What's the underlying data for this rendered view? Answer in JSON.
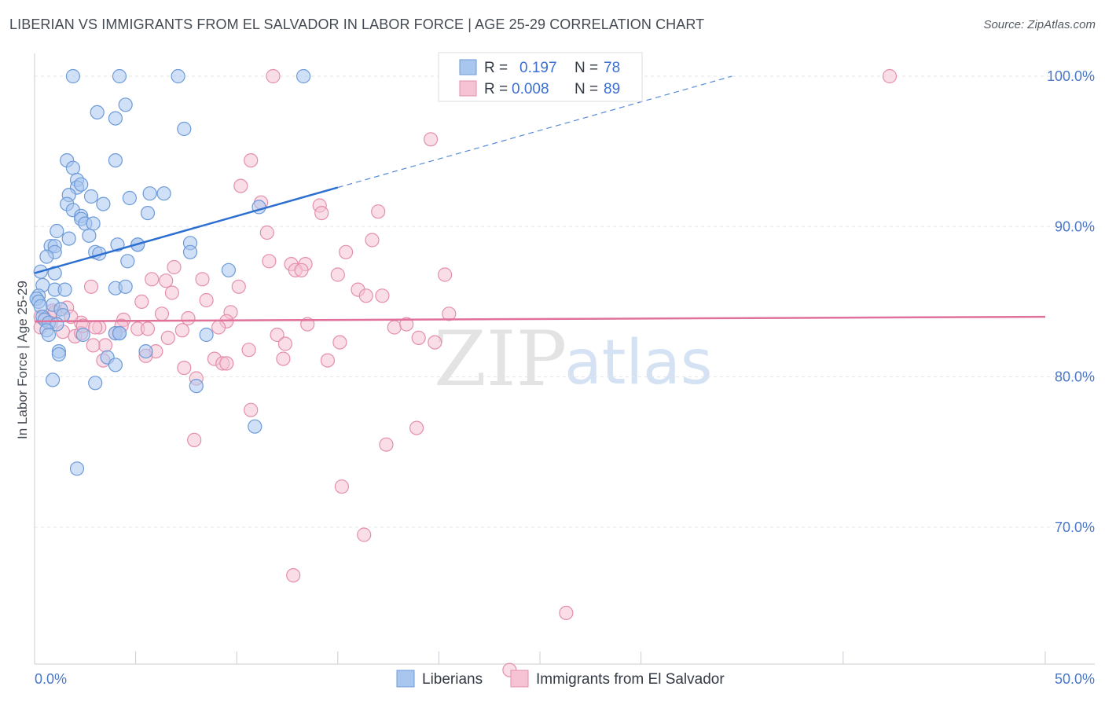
{
  "title": "LIBERIAN VS IMMIGRANTS FROM EL SALVADOR IN LABOR FORCE | AGE 25-29 CORRELATION CHART",
  "source": "Source: ZipAtlas.com",
  "watermark": {
    "zip": "ZIP",
    "atlas": "atlas"
  },
  "colors": {
    "liberians_fill": "#a9c6ee",
    "liberians_stroke": "#6d9ad8",
    "liberians_line": "#2d6fd1",
    "elsalvador_fill": "#f5c3d3",
    "elsalvador_stroke": "#e48fab",
    "elsalvador_line": "#e0719a",
    "tick_label": "#4a77c9",
    "grid": "#e3e6ea"
  },
  "legend": {
    "r_label": "R =",
    "n_label": "N =",
    "items": [
      {
        "r": "0.197",
        "n": "78"
      },
      {
        "r": "0.008",
        "n": "89"
      }
    ]
  },
  "bottom_legend": [
    "Liberians",
    "Immigrants from El Salvador"
  ],
  "chart_data": {
    "type": "scatter",
    "title": "LIBERIAN VS IMMIGRANTS FROM EL SALVADOR IN LABOR FORCE | AGE 25-29 CORRELATION CHART",
    "xlabel": "",
    "ylabel": "In Labor Force | Age 25-29",
    "xlim": [
      0,
      50
    ],
    "ylim": [
      60.5,
      101
    ],
    "x_tick_labels": [
      "0.0%",
      "50.0%"
    ],
    "y_ticks": [
      70,
      80,
      90,
      100
    ],
    "y_tick_labels": [
      "70.0%",
      "80.0%",
      "90.0%",
      "100.0%"
    ],
    "series": [
      {
        "name": "Liberians",
        "r": 0.197,
        "n": 78,
        "trend": {
          "x0": 0,
          "y0": 86.9,
          "x1": 15,
          "y1": 92.6,
          "dashed_to_x": 34.5,
          "dashed_to_y": 100.0
        },
        "points": [
          [
            1.9,
            100
          ],
          [
            4.2,
            100
          ],
          [
            7.1,
            100
          ],
          [
            13.3,
            100
          ],
          [
            3.1,
            97.6
          ],
          [
            4.0,
            97.2
          ],
          [
            4.5,
            98.1
          ],
          [
            7.4,
            96.5
          ],
          [
            1.6,
            94.4
          ],
          [
            1.9,
            93.9
          ],
          [
            4.0,
            94.4
          ],
          [
            2.1,
            93.1
          ],
          [
            2.1,
            92.6
          ],
          [
            2.3,
            92.8
          ],
          [
            1.7,
            92.1
          ],
          [
            2.8,
            92.0
          ],
          [
            5.7,
            92.2
          ],
          [
            4.7,
            91.9
          ],
          [
            6.4,
            92.2
          ],
          [
            1.6,
            91.5
          ],
          [
            1.9,
            91.1
          ],
          [
            3.4,
            91.5
          ],
          [
            11.1,
            91.3
          ],
          [
            2.3,
            90.7
          ],
          [
            2.3,
            90.5
          ],
          [
            2.5,
            90.2
          ],
          [
            2.9,
            90.2
          ],
          [
            5.6,
            90.9
          ],
          [
            1.1,
            89.7
          ],
          [
            1.7,
            89.2
          ],
          [
            2.7,
            89.4
          ],
          [
            0.8,
            88.7
          ],
          [
            1.0,
            88.7
          ],
          [
            1.0,
            88.3
          ],
          [
            0.6,
            88.0
          ],
          [
            3.0,
            88.3
          ],
          [
            3.2,
            88.2
          ],
          [
            4.1,
            88.8
          ],
          [
            5.1,
            88.8
          ],
          [
            5.1,
            88.8
          ],
          [
            7.7,
            88.9
          ],
          [
            7.7,
            88.3
          ],
          [
            4.6,
            87.7
          ],
          [
            0.3,
            87.0
          ],
          [
            1.0,
            86.9
          ],
          [
            9.6,
            87.1
          ],
          [
            0.4,
            86.1
          ],
          [
            0.2,
            85.4
          ],
          [
            0.1,
            85.2
          ],
          [
            1.0,
            85.8
          ],
          [
            1.5,
            85.8
          ],
          [
            4.0,
            85.9
          ],
          [
            4.5,
            86.0
          ],
          [
            0.2,
            85.0
          ],
          [
            0.3,
            84.7
          ],
          [
            0.9,
            84.8
          ],
          [
            1.3,
            84.5
          ],
          [
            0.4,
            84.0
          ],
          [
            1.4,
            84.1
          ],
          [
            0.5,
            83.8
          ],
          [
            0.7,
            83.6
          ],
          [
            1.1,
            83.5
          ],
          [
            0.6,
            83.1
          ],
          [
            0.7,
            82.8
          ],
          [
            2.4,
            82.8
          ],
          [
            4.0,
            82.9
          ],
          [
            4.2,
            82.9
          ],
          [
            4.2,
            82.9
          ],
          [
            8.5,
            82.8
          ],
          [
            1.2,
            81.7
          ],
          [
            1.2,
            81.5
          ],
          [
            5.5,
            81.7
          ],
          [
            3.6,
            81.3
          ],
          [
            4.0,
            80.8
          ],
          [
            0.9,
            79.8
          ],
          [
            3.0,
            79.6
          ],
          [
            8.0,
            79.4
          ],
          [
            10.9,
            76.7
          ],
          [
            2.1,
            73.9
          ]
        ]
      },
      {
        "name": "Immigrants from El Salvador",
        "r": 0.008,
        "n": 89,
        "trend": {
          "x0": 0,
          "y0": 83.7,
          "x1": 50,
          "y1": 84.0
        },
        "points": [
          [
            11.8,
            100
          ],
          [
            42.3,
            100
          ],
          [
            19.6,
            95.8
          ],
          [
            10.7,
            94.4
          ],
          [
            10.2,
            92.7
          ],
          [
            14.1,
            91.4
          ],
          [
            17.0,
            91.0
          ],
          [
            11.2,
            91.6
          ],
          [
            14.2,
            90.9
          ],
          [
            11.5,
            89.6
          ],
          [
            16.7,
            89.1
          ],
          [
            15.4,
            88.3
          ],
          [
            11.6,
            87.7
          ],
          [
            12.7,
            87.5
          ],
          [
            13.4,
            87.5
          ],
          [
            12.9,
            87.1
          ],
          [
            13.2,
            87.1
          ],
          [
            6.9,
            87.3
          ],
          [
            15.0,
            86.8
          ],
          [
            20.3,
            86.8
          ],
          [
            5.8,
            86.5
          ],
          [
            6.5,
            86.4
          ],
          [
            8.3,
            86.5
          ],
          [
            10.1,
            86.0
          ],
          [
            2.8,
            86.0
          ],
          [
            16.0,
            85.8
          ],
          [
            6.8,
            85.6
          ],
          [
            17.2,
            85.4
          ],
          [
            16.4,
            85.4
          ],
          [
            5.3,
            85.0
          ],
          [
            8.5,
            85.1
          ],
          [
            1.6,
            84.6
          ],
          [
            0.9,
            84.4
          ],
          [
            6.3,
            84.2
          ],
          [
            9.7,
            84.3
          ],
          [
            20.5,
            84.2
          ],
          [
            0.5,
            83.9
          ],
          [
            0.8,
            83.6
          ],
          [
            2.3,
            83.6
          ],
          [
            4.4,
            83.8
          ],
          [
            7.6,
            83.9
          ],
          [
            9.5,
            83.7
          ],
          [
            0.3,
            83.3
          ],
          [
            3.2,
            83.3
          ],
          [
            4.3,
            83.4
          ],
          [
            5.1,
            83.2
          ],
          [
            5.6,
            83.2
          ],
          [
            7.3,
            83.1
          ],
          [
            9.1,
            83.3
          ],
          [
            17.8,
            83.3
          ],
          [
            18.4,
            83.5
          ],
          [
            1.4,
            83.0
          ],
          [
            2.0,
            82.7
          ],
          [
            2.3,
            82.9
          ],
          [
            4.0,
            82.9
          ],
          [
            6.6,
            82.6
          ],
          [
            12.0,
            82.8
          ],
          [
            15.1,
            82.3
          ],
          [
            19.0,
            82.6
          ],
          [
            19.8,
            82.3
          ],
          [
            3.5,
            82.1
          ],
          [
            12.4,
            82.2
          ],
          [
            10.6,
            81.8
          ],
          [
            6.0,
            81.7
          ],
          [
            2.9,
            82.1
          ],
          [
            5.5,
            81.4
          ],
          [
            3.4,
            81.1
          ],
          [
            8.9,
            81.2
          ],
          [
            9.3,
            80.9
          ],
          [
            9.5,
            80.9
          ],
          [
            14.5,
            81.1
          ],
          [
            12.3,
            81.2
          ],
          [
            7.4,
            80.6
          ],
          [
            8.0,
            79.9
          ],
          [
            10.7,
            77.8
          ],
          [
            18.9,
            76.6
          ],
          [
            17.4,
            75.5
          ],
          [
            7.9,
            75.8
          ],
          [
            15.2,
            72.7
          ],
          [
            16.3,
            69.5
          ],
          [
            12.8,
            66.8
          ],
          [
            26.3,
            64.3
          ],
          [
            23.5,
            60.5
          ],
          [
            0.3,
            84.0
          ],
          [
            1.0,
            84.3
          ],
          [
            1.8,
            84.0
          ],
          [
            2.4,
            83.4
          ],
          [
            3.0,
            83.3
          ],
          [
            13.5,
            83.5
          ]
        ]
      }
    ]
  },
  "axis_labels": {
    "y": "In Labor Force | Age 25-29"
  }
}
